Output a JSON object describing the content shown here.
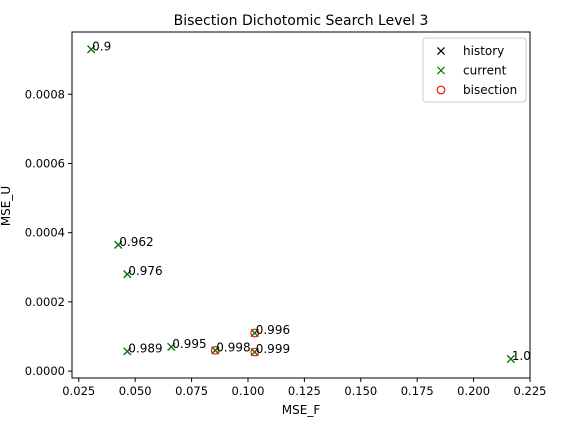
{
  "chart_data": {
    "type": "scatter",
    "title": "Bisection Dichotomic Search Level 3",
    "xlabel": "MSE_F",
    "ylabel": "MSE_U",
    "xlim": [
      0.022,
      0.225
    ],
    "ylim": [
      -2e-05,
      0.00098
    ],
    "x_ticks": [
      0.025,
      0.05,
      0.075,
      0.1,
      0.125,
      0.15,
      0.175,
      0.2,
      0.225
    ],
    "x_tick_labels": [
      "0.025",
      "0.050",
      "0.075",
      "0.100",
      "0.125",
      "0.150",
      "0.175",
      "0.200",
      "0.225"
    ],
    "y_ticks": [
      0.0,
      0.0002,
      0.0004,
      0.0006,
      0.0008
    ],
    "y_tick_labels": [
      "0.0000",
      "0.0002",
      "0.0004",
      "0.0006",
      "0.0008"
    ],
    "grid": false,
    "legend_position": "top-right",
    "series": [
      {
        "name": "history",
        "marker": "x",
        "color": "#000000",
        "points": [
          {
            "x": 0.0305,
            "y": 0.00093
          },
          {
            "x": 0.0425,
            "y": 0.000365
          },
          {
            "x": 0.0465,
            "y": 0.00028
          },
          {
            "x": 0.0465,
            "y": 5.7e-05
          },
          {
            "x": 0.066,
            "y": 7e-05
          },
          {
            "x": 0.0855,
            "y": 6e-05
          },
          {
            "x": 0.103,
            "y": 0.00011
          },
          {
            "x": 0.103,
            "y": 5.5e-05
          },
          {
            "x": 0.2165,
            "y": 3.5e-05
          }
        ]
      },
      {
        "name": "current",
        "marker": "x",
        "color": "#008000",
        "points": [
          {
            "x": 0.0305,
            "y": 0.00093
          },
          {
            "x": 0.0425,
            "y": 0.000365
          },
          {
            "x": 0.0465,
            "y": 0.00028
          },
          {
            "x": 0.0465,
            "y": 5.7e-05
          },
          {
            "x": 0.066,
            "y": 7e-05
          },
          {
            "x": 0.0855,
            "y": 6e-05
          },
          {
            "x": 0.103,
            "y": 0.00011
          },
          {
            "x": 0.103,
            "y": 5.5e-05
          },
          {
            "x": 0.2165,
            "y": 3.5e-05
          }
        ]
      },
      {
        "name": "bisection",
        "marker": "o",
        "color": "#ff0000",
        "points": [
          {
            "x": 0.0855,
            "y": 6e-05
          },
          {
            "x": 0.103,
            "y": 0.00011
          },
          {
            "x": 0.103,
            "y": 5.5e-05
          }
        ]
      }
    ],
    "annotations": [
      {
        "text": "0.9",
        "x": 0.0305,
        "y": 0.00093
      },
      {
        "text": "0.962",
        "x": 0.0425,
        "y": 0.000365
      },
      {
        "text": "0.976",
        "x": 0.0465,
        "y": 0.00028
      },
      {
        "text": "0.989",
        "x": 0.0465,
        "y": 5.7e-05
      },
      {
        "text": "0.995",
        "x": 0.066,
        "y": 7e-05
      },
      {
        "text": "0.998",
        "x": 0.0855,
        "y": 6e-05
      },
      {
        "text": "0.996",
        "x": 0.103,
        "y": 0.00011
      },
      {
        "text": "0.999",
        "x": 0.103,
        "y": 5.5e-05
      },
      {
        "text": "1.0",
        "x": 0.2165,
        "y": 3.5e-05
      }
    ]
  }
}
